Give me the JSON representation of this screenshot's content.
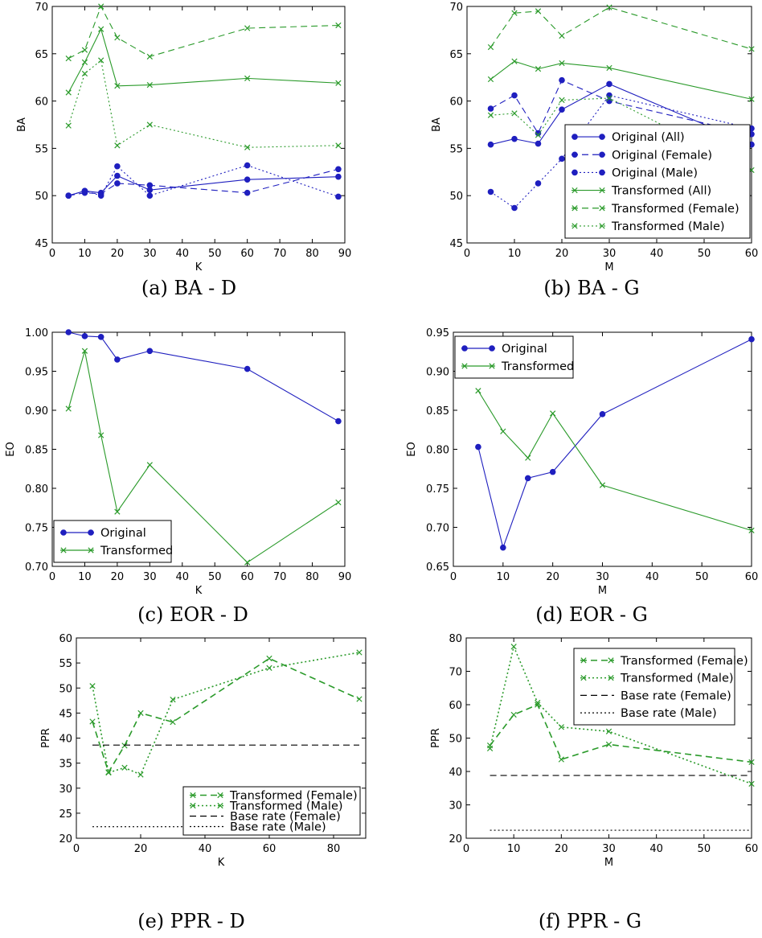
{
  "colors": {
    "blue": "#1f1fbf",
    "green": "#2a9a2a",
    "black": "#000000"
  },
  "chart_data": [
    {
      "type": "line",
      "caption": "(a) BA - D",
      "xlabel": "K",
      "ylabel": "BA",
      "xlim": [
        0,
        90
      ],
      "ylim": [
        45,
        70
      ],
      "xticks": [
        0,
        10,
        20,
        30,
        40,
        50,
        60,
        70,
        80,
        90
      ],
      "yticks": [
        45,
        50,
        55,
        60,
        65,
        70
      ],
      "ytick_decimals": 0,
      "legend": null,
      "series": [
        {
          "name": "Original (All)",
          "color": "blue",
          "style": "solid",
          "marker": "dot",
          "x": [
            5,
            10,
            15,
            20,
            30,
            60,
            88
          ],
          "y": [
            50.0,
            50.5,
            50.3,
            52.1,
            50.6,
            51.7,
            52.0
          ]
        },
        {
          "name": "Original (Female)",
          "color": "blue",
          "style": "dashed",
          "marker": "dot",
          "x": [
            5,
            10,
            15,
            20,
            30,
            60,
            88
          ],
          "y": [
            50.0,
            50.3,
            50.2,
            51.3,
            51.1,
            50.3,
            52.8
          ]
        },
        {
          "name": "Original (Male)",
          "color": "blue",
          "style": "dotted",
          "marker": "dot",
          "x": [
            5,
            10,
            15,
            20,
            30,
            60,
            88
          ],
          "y": [
            50.0,
            50.5,
            50.0,
            53.1,
            50.0,
            53.2,
            49.9
          ]
        },
        {
          "name": "Transformed (All)",
          "color": "green",
          "style": "solid",
          "marker": "x",
          "x": [
            5,
            10,
            15,
            20,
            30,
            60,
            88
          ],
          "y": [
            60.9,
            64.1,
            67.6,
            61.6,
            61.7,
            62.4,
            61.9
          ]
        },
        {
          "name": "Transformed (Female)",
          "color": "green",
          "style": "dashed",
          "marker": "x",
          "x": [
            5,
            10,
            15,
            20,
            30,
            60,
            88
          ],
          "y": [
            64.5,
            65.4,
            70.0,
            66.7,
            64.7,
            67.7,
            68.0
          ]
        },
        {
          "name": "Transformed (Male)",
          "color": "green",
          "style": "dotted",
          "marker": "x",
          "x": [
            5,
            10,
            15,
            20,
            30,
            60,
            88
          ],
          "y": [
            57.4,
            62.9,
            64.3,
            55.3,
            57.5,
            55.1,
            55.3
          ]
        }
      ]
    },
    {
      "type": "line",
      "caption": "(b) BA - G",
      "xlabel": "M",
      "ylabel": "BA",
      "xlim": [
        0,
        60
      ],
      "ylim": [
        45,
        70
      ],
      "xticks": [
        0,
        10,
        20,
        30,
        40,
        50,
        60
      ],
      "yticks": [
        45,
        50,
        55,
        60,
        65,
        70
      ],
      "ytick_decimals": 0,
      "legend": {
        "placement": "lower-right",
        "entries": [
          "Original (All)",
          "Original (Female)",
          "Original (Male)",
          "Transformed (All)",
          "Transformed (Female)",
          "Transformed (Male)"
        ]
      },
      "series": [
        {
          "name": "Original (All)",
          "color": "blue",
          "style": "solid",
          "marker": "dot",
          "x": [
            5,
            10,
            15,
            20,
            30,
            60
          ],
          "y": [
            55.4,
            56.0,
            55.5,
            59.1,
            61.8,
            55.4
          ]
        },
        {
          "name": "Original (Female)",
          "color": "blue",
          "style": "dashed",
          "marker": "dot",
          "x": [
            5,
            10,
            15,
            20,
            30,
            60
          ],
          "y": [
            59.2,
            60.6,
            56.6,
            62.2,
            60.0,
            56.5
          ]
        },
        {
          "name": "Original (Male)",
          "color": "blue",
          "style": "dotted",
          "marker": "dot",
          "x": [
            5,
            10,
            15,
            20,
            30,
            60
          ],
          "y": [
            50.4,
            48.7,
            51.3,
            53.9,
            60.6,
            57.1
          ]
        },
        {
          "name": "Transformed (All)",
          "color": "green",
          "style": "solid",
          "marker": "x",
          "x": [
            5,
            10,
            15,
            20,
            30,
            60
          ],
          "y": [
            62.3,
            64.2,
            63.4,
            64.0,
            63.5,
            60.2
          ]
        },
        {
          "name": "Transformed (Female)",
          "color": "green",
          "style": "dashed",
          "marker": "x",
          "x": [
            5,
            10,
            15,
            20,
            30,
            60
          ],
          "y": [
            65.7,
            69.3,
            69.5,
            66.9,
            69.9,
            65.5
          ]
        },
        {
          "name": "Transformed (Male)",
          "color": "green",
          "style": "dotted",
          "marker": "x",
          "x": [
            5,
            10,
            15,
            20,
            30,
            60
          ],
          "y": [
            58.5,
            58.7,
            56.4,
            60.1,
            60.3,
            52.7
          ]
        }
      ]
    },
    {
      "type": "line",
      "caption": "(c) EOR - D",
      "xlabel": "K",
      "ylabel": "EO",
      "xlim": [
        0,
        90
      ],
      "ylim": [
        0.7,
        1.0
      ],
      "xticks": [
        0,
        10,
        20,
        30,
        40,
        50,
        60,
        70,
        80,
        90
      ],
      "yticks": [
        0.7,
        0.75,
        0.8,
        0.85,
        0.9,
        0.95,
        1.0
      ],
      "ytick_decimals": 2,
      "legend": {
        "placement": "lower-left",
        "entries": [
          "Original",
          "Transformed"
        ]
      },
      "series": [
        {
          "name": "Original",
          "color": "blue",
          "style": "solid",
          "marker": "dot",
          "x": [
            5,
            10,
            15,
            20,
            30,
            60,
            88
          ],
          "y": [
            1.0,
            0.995,
            0.994,
            0.965,
            0.976,
            0.953,
            0.886
          ]
        },
        {
          "name": "Transformed",
          "color": "green",
          "style": "solid",
          "marker": "x",
          "x": [
            5,
            10,
            15,
            20,
            30,
            60,
            88
          ],
          "y": [
            0.902,
            0.976,
            0.868,
            0.77,
            0.83,
            0.705,
            0.782
          ]
        }
      ]
    },
    {
      "type": "line",
      "caption": "(d) EOR - G",
      "xlabel": "M",
      "ylabel": "EO",
      "xlim": [
        0,
        60
      ],
      "ylim": [
        0.65,
        0.95
      ],
      "xticks": [
        0,
        10,
        20,
        30,
        40,
        50,
        60
      ],
      "yticks": [
        0.65,
        0.7,
        0.75,
        0.8,
        0.85,
        0.9,
        0.95
      ],
      "ytick_decimals": 2,
      "legend": {
        "placement": "upper-left",
        "entries": [
          "Original",
          "Transformed"
        ]
      },
      "series": [
        {
          "name": "Original",
          "color": "blue",
          "style": "solid",
          "marker": "dot",
          "x": [
            5,
            10,
            15,
            20,
            30,
            60
          ],
          "y": [
            0.803,
            0.674,
            0.763,
            0.771,
            0.845,
            0.941
          ]
        },
        {
          "name": "Transformed",
          "color": "green",
          "style": "solid",
          "marker": "x",
          "x": [
            5,
            10,
            15,
            20,
            30,
            60
          ],
          "y": [
            0.875,
            0.823,
            0.789,
            0.846,
            0.754,
            0.696
          ]
        }
      ]
    },
    {
      "type": "line",
      "caption": "(e) PPR - D",
      "xlabel": "K",
      "ylabel": "PPR",
      "xlim": [
        0,
        90
      ],
      "ylim": [
        20,
        60
      ],
      "xticks": [
        0,
        20,
        40,
        60,
        80
      ],
      "yticks": [
        20,
        25,
        30,
        35,
        40,
        45,
        50,
        55,
        60
      ],
      "ytick_decimals": 0,
      "legend": {
        "placement": "lower-right",
        "entries": [
          "Transformed (Female)",
          "Transformed (Male)",
          "Base rate (Female)",
          "Base rate (Male)"
        ]
      },
      "series": [
        {
          "name": "Transformed (Female)",
          "color": "green",
          "style": "dashed",
          "marker": "x",
          "thick": true,
          "x": [
            5,
            10,
            15,
            20,
            30,
            60,
            88
          ],
          "y": [
            43.3,
            33.2,
            38.5,
            45.0,
            43.2,
            55.9,
            47.8
          ]
        },
        {
          "name": "Transformed (Male)",
          "color": "green",
          "style": "dotted",
          "marker": "x",
          "thick": true,
          "x": [
            5,
            10,
            15,
            20,
            30,
            60,
            88
          ],
          "y": [
            50.4,
            33.1,
            34.1,
            32.7,
            47.7,
            54.0,
            57.1
          ]
        },
        {
          "name": "Base rate (Female)",
          "color": "black",
          "style": "dashed",
          "marker": "none",
          "x": [
            5,
            88
          ],
          "y": [
            38.6,
            38.6
          ]
        },
        {
          "name": "Base rate (Male)",
          "color": "black",
          "style": "dotted",
          "marker": "none",
          "x": [
            5,
            88
          ],
          "y": [
            22.3,
            22.3
          ]
        }
      ]
    },
    {
      "type": "line",
      "caption": "(f) PPR - G",
      "xlabel": "M",
      "ylabel": "PPR",
      "xlim": [
        0,
        60
      ],
      "ylim": [
        20,
        80
      ],
      "xticks": [
        0,
        10,
        20,
        30,
        40,
        50,
        60
      ],
      "yticks": [
        20,
        30,
        40,
        50,
        60,
        70,
        80
      ],
      "ytick_decimals": 0,
      "legend": {
        "placement": "upper-right",
        "entries": [
          "Transformed (Female)",
          "Transformed (Male)",
          "Base rate (Female)",
          "Base rate (Male)"
        ]
      },
      "series": [
        {
          "name": "Transformed (Female)",
          "color": "green",
          "style": "dashed",
          "marker": "x",
          "thick": true,
          "x": [
            5,
            10,
            15,
            20,
            30,
            60
          ],
          "y": [
            47.8,
            57.0,
            60.0,
            43.6,
            48.1,
            42.8
          ]
        },
        {
          "name": "Transformed (Male)",
          "color": "green",
          "style": "dotted",
          "marker": "x",
          "thick": true,
          "x": [
            5,
            10,
            15,
            20,
            30,
            60
          ],
          "y": [
            46.9,
            77.4,
            60.6,
            53.3,
            52.0,
            36.3
          ]
        },
        {
          "name": "Base rate (Female)",
          "color": "black",
          "style": "dashed",
          "marker": "none",
          "x": [
            5,
            60
          ],
          "y": [
            38.8,
            38.8
          ]
        },
        {
          "name": "Base rate (Male)",
          "color": "black",
          "style": "dotted",
          "marker": "none",
          "x": [
            5,
            60
          ],
          "y": [
            22.4,
            22.4
          ]
        }
      ]
    }
  ]
}
